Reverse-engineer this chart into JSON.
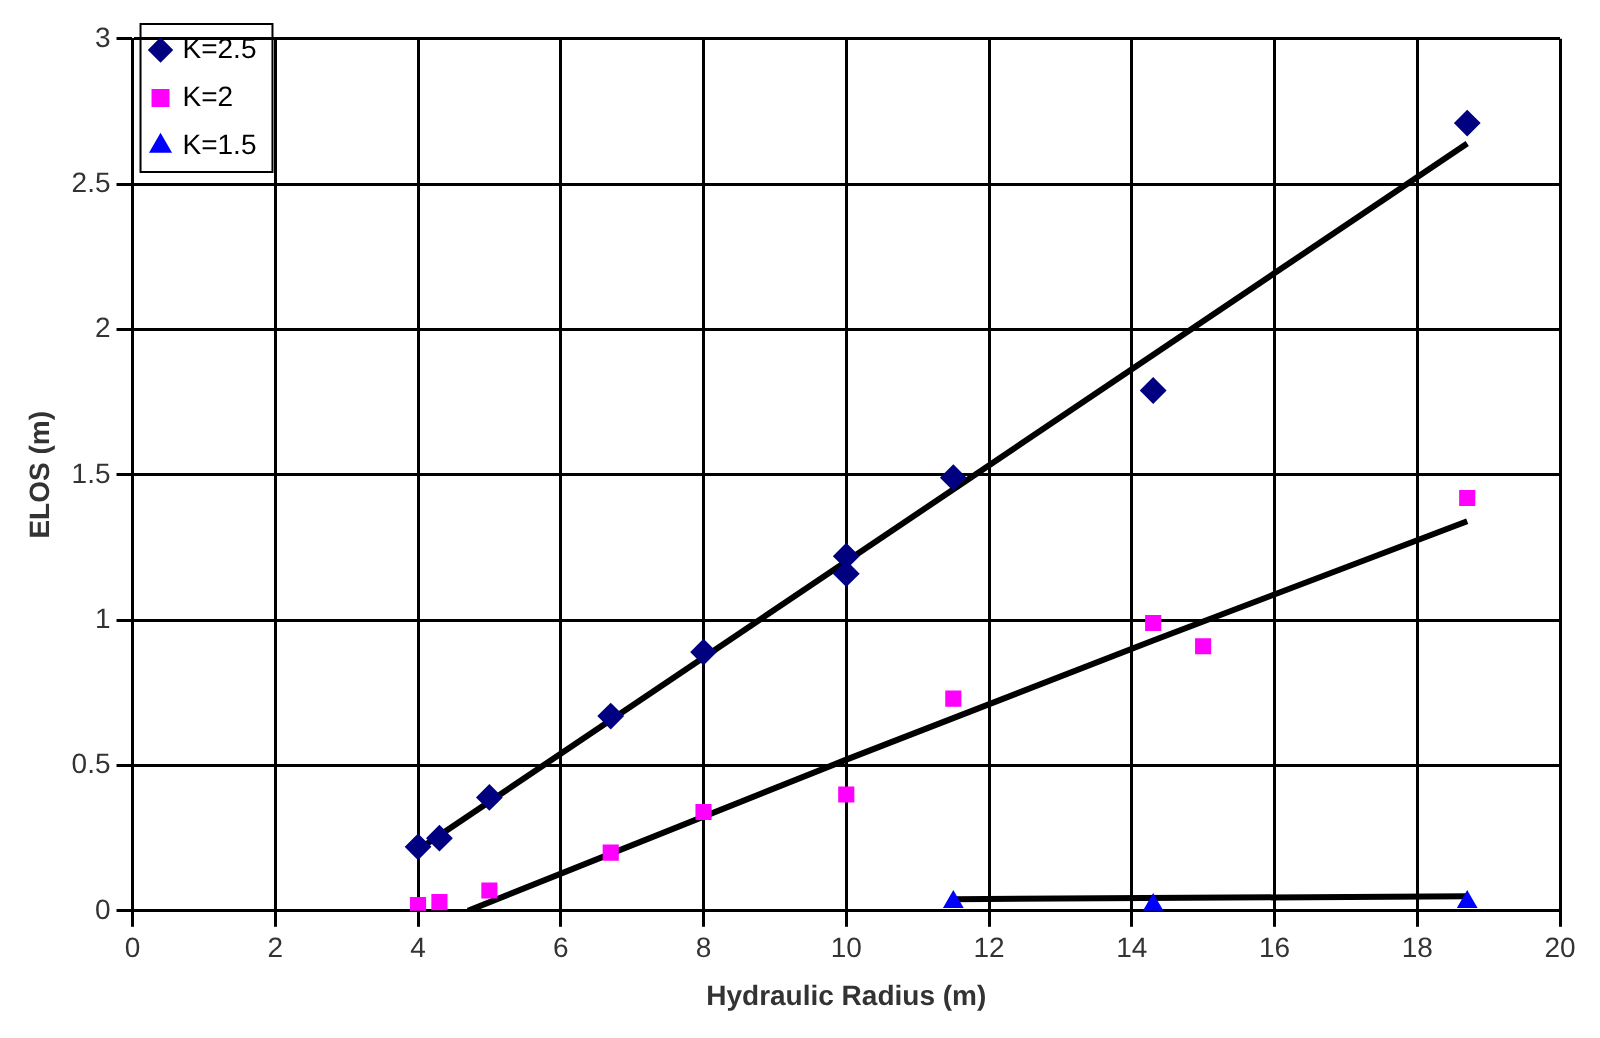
{
  "chart_data": {
    "type": "scatter",
    "xlabel": "Hydraulic Radius (m)",
    "ylabel": "ELOS (m)",
    "xlim": [
      0,
      20
    ],
    "xticks": [
      0,
      2,
      4,
      6,
      8,
      10,
      12,
      14,
      16,
      18,
      20
    ],
    "ylim": [
      0,
      3
    ],
    "yticks": [
      0,
      0.5,
      1,
      1.5,
      2,
      2.5,
      3
    ],
    "grid": true,
    "legend": "top left",
    "series": [
      {
        "name": "K=2.5",
        "color": "#000080",
        "marker": "diamond",
        "x": [
          4,
          4.3,
          5,
          6.7,
          8,
          10,
          10,
          11.5,
          14.3,
          18.7
        ],
        "values": [
          0.22,
          0.25,
          0.39,
          0.67,
          0.89,
          1.22,
          1.16,
          1.49,
          1.79,
          2.71
        ]
      },
      {
        "name": "K=2",
        "color": "#ff00ff",
        "marker": "square",
        "x": [
          4,
          4.3,
          5,
          6.7,
          8,
          10,
          11.5,
          14.3,
          15,
          18.7
        ],
        "values": [
          0.02,
          0.03,
          0.07,
          0.2,
          0.34,
          0.4,
          0.73,
          0.99,
          0.91,
          1.42
        ]
      },
      {
        "name": "K=1.5",
        "color": "#0000ff",
        "marker": "triangle",
        "x": [
          11.5,
          14.3,
          18.7
        ],
        "values": [
          0.03,
          0.02,
          0.03
        ]
      },
      {
        "type": "line",
        "color": "#000000",
        "marker": "none",
        "x": [
          4,
          18.7
        ],
        "values": [
          0.21,
          2.64
        ]
      },
      {
        "type": "line",
        "color": "#000000",
        "marker": "none",
        "x": [
          4.7,
          10,
          14.3,
          18.7
        ],
        "values": [
          0,
          0.52,
          0.93,
          1.34
        ]
      },
      {
        "type": "line",
        "color": "#000000",
        "marker": "none",
        "x": [
          11.5,
          18.7
        ],
        "values": [
          0.04,
          0.05
        ]
      }
    ]
  }
}
